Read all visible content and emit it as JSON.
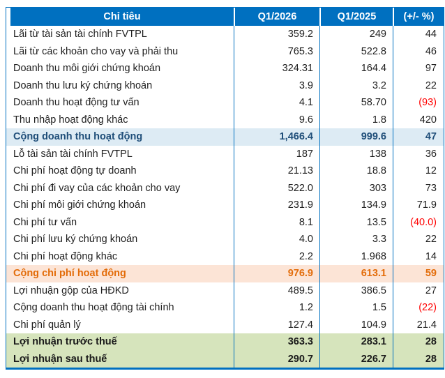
{
  "table": {
    "columns": [
      "Chỉ tiêu",
      "Q1/2026",
      "Q1/2025",
      "(+/- %)"
    ],
    "rows": [
      {
        "label": "Lãi từ tài sản tài chính FVTPL",
        "q1_2026": "359.2",
        "q1_2025": "249",
        "change": "44"
      },
      {
        "label": "Lãi từ các khoản cho vay và phải thu",
        "q1_2026": "765.3",
        "q1_2025": "522.8",
        "change": "46"
      },
      {
        "label": "Doanh thu môi giới chứng khoán",
        "q1_2026": "324.31",
        "q1_2025": "164.4",
        "change": "97"
      },
      {
        "label": "Doanh thu lưu ký chứng khoán",
        "q1_2026": "3.9",
        "q1_2025": "3.2",
        "change": "22"
      },
      {
        "label": "Doanh thu hoạt động tư vấn",
        "q1_2026": "4.1",
        "q1_2025": "58.70",
        "change": "(93)"
      },
      {
        "label": "Thu nhập hoạt động khác",
        "q1_2026": "9.6",
        "q1_2025": "1.8",
        "change": "420"
      },
      {
        "label": "Cộng doanh thu hoạt động",
        "q1_2026": "1,466.4",
        "q1_2025": "999.6",
        "change": "47"
      },
      {
        "label": "Lỗ tài sản tài chính FVTPL",
        "q1_2026": "187",
        "q1_2025": "138",
        "change": "36"
      },
      {
        "label": "Chi phí hoạt động tự doanh",
        "q1_2026": "21.13",
        "q1_2025": "18.8",
        "change": "12"
      },
      {
        "label": "Chi phí đi vay của các khoản cho vay",
        "q1_2026": "522.0",
        "q1_2025": "303",
        "change": "73"
      },
      {
        "label": "Chi phí môi giới chứng khoán",
        "q1_2026": "231.9",
        "q1_2025": "134.9",
        "change": "71.9"
      },
      {
        "label": "Chi phí tư vấn",
        "q1_2026": "8.1",
        "q1_2025": "13.5",
        "change": "(40.0)"
      },
      {
        "label": "Chi phí lưu ký chứng khoán",
        "q1_2026": "4.0",
        "q1_2025": "3.3",
        "change": "22"
      },
      {
        "label": "Chi phí hoạt động khác",
        "q1_2026": "2.2",
        "q1_2025": "1.968",
        "change": "14"
      },
      {
        "label": "Cộng chi phí hoạt động",
        "q1_2026": "976.9",
        "q1_2025": "613.1",
        "change": "59"
      },
      {
        "label": "Lợi nhuận gộp của HĐKD",
        "q1_2026": "489.5",
        "q1_2025": "386.5",
        "change": "27"
      },
      {
        "label": "Cộng doanh thu hoạt động tài chính",
        "q1_2026": "1.2",
        "q1_2025": "1.5",
        "change": "(22)"
      },
      {
        "label": "Chi phí quản lý",
        "q1_2026": "127.4",
        "q1_2025": "104.9",
        "change": "21.4"
      },
      {
        "label": "Lợi nhuận trước thuế",
        "q1_2026": "363.3",
        "q1_2025": "283.1",
        "change": "28"
      },
      {
        "label": "Lợi nhuận sau thuế",
        "q1_2026": "290.7",
        "q1_2025": "226.7",
        "change": "28"
      }
    ]
  },
  "colors": {
    "header_bg": "#0070C0",
    "header_text": "#ffffff",
    "border": "#0070C0",
    "subtotal_revenue_bg": "#DDEBF4",
    "subtotal_revenue_text": "#1F4E79",
    "subtotal_expense_bg": "#FCE4D6",
    "subtotal_expense_text": "#E36C09",
    "total_profit_bg": "#D6E4BC",
    "negative_text": "#FF0000"
  },
  "chart_data": {
    "type": "table",
    "title": "",
    "columns": [
      "Chỉ tiêu",
      "Q1/2026",
      "Q1/2025",
      "(+/- %)"
    ],
    "rows": [
      [
        "Lãi từ tài sản tài chính FVTPL",
        359.2,
        249,
        44
      ],
      [
        "Lãi từ các khoản cho vay và phải thu",
        765.3,
        522.8,
        46
      ],
      [
        "Doanh thu môi giới chứng khoán",
        324.31,
        164.4,
        97
      ],
      [
        "Doanh thu lưu ký chứng khoán",
        3.9,
        3.2,
        22
      ],
      [
        "Doanh thu hoạt động tư vấn",
        4.1,
        58.7,
        -93
      ],
      [
        "Thu nhập hoạt động khác",
        9.6,
        1.8,
        420
      ],
      [
        "Cộng doanh thu hoạt động",
        1466.4,
        999.6,
        47
      ],
      [
        "Lỗ tài sản tài chính FVTPL",
        187,
        138,
        36
      ],
      [
        "Chi phí hoạt động tự doanh",
        21.13,
        18.8,
        12
      ],
      [
        "Chi phí đi vay của các khoản cho vay",
        522.0,
        303,
        73
      ],
      [
        "Chi phí môi giới chứng khoán",
        231.9,
        134.9,
        71.9
      ],
      [
        "Chi phí tư vấn",
        8.1,
        13.5,
        -40.0
      ],
      [
        "Chi phí lưu ký chứng khoán",
        4.0,
        3.3,
        22
      ],
      [
        "Chi phí hoạt động khác",
        2.2,
        1.968,
        14
      ],
      [
        "Cộng chi phí hoạt động",
        976.9,
        613.1,
        59
      ],
      [
        "Lợi nhuận gộp của HĐKD",
        489.5,
        386.5,
        27
      ],
      [
        "Cộng doanh thu hoạt động tài chính",
        1.2,
        1.5,
        -22
      ],
      [
        "Chi phí quản lý",
        127.4,
        104.9,
        21.4
      ],
      [
        "Lợi nhuận trước thuế",
        363.3,
        283.1,
        28
      ],
      [
        "Lợi nhuận sau thuế",
        290.7,
        226.7,
        28
      ]
    ]
  }
}
